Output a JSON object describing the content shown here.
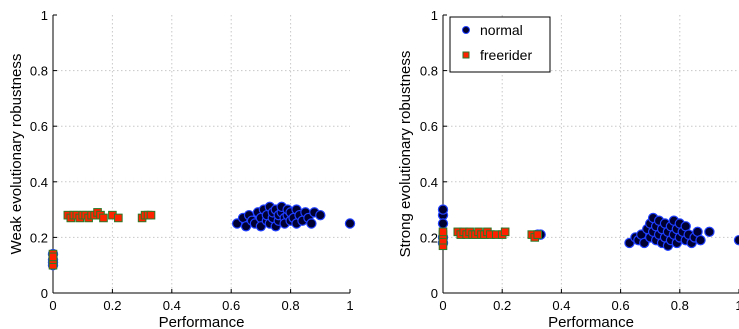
{
  "chart_data": [
    {
      "type": "scatter",
      "xlabel": "Performance",
      "ylabel": "Weak evolutionary robustness",
      "xlim": [
        0,
        1
      ],
      "ylim": [
        0,
        1
      ],
      "x_ticks": [
        "0",
        "0.2",
        "0.4",
        "0.6",
        "0.8",
        "1"
      ],
      "y_ticks": [
        "0",
        "0.2",
        "0.4",
        "0.6",
        "0.8",
        "1"
      ],
      "grid": true,
      "legend": null,
      "series": [
        {
          "name": "normal",
          "marker": "circle",
          "color": "#000033",
          "edge": "#1f3fff",
          "points": [
            [
              0.0,
              0.1
            ],
            [
              0.0,
              0.12
            ],
            [
              0.0,
              0.14
            ],
            [
              0.0,
              0.11
            ],
            [
              0.62,
              0.25
            ],
            [
              0.64,
              0.27
            ],
            [
              0.65,
              0.24
            ],
            [
              0.66,
              0.28
            ],
            [
              0.67,
              0.26
            ],
            [
              0.68,
              0.25
            ],
            [
              0.69,
              0.29
            ],
            [
              0.7,
              0.27
            ],
            [
              0.7,
              0.24
            ],
            [
              0.71,
              0.3
            ],
            [
              0.72,
              0.26
            ],
            [
              0.72,
              0.28
            ],
            [
              0.73,
              0.31
            ],
            [
              0.73,
              0.25
            ],
            [
              0.74,
              0.27
            ],
            [
              0.74,
              0.29
            ],
            [
              0.75,
              0.3
            ],
            [
              0.75,
              0.24
            ],
            [
              0.76,
              0.26
            ],
            [
              0.76,
              0.28
            ],
            [
              0.77,
              0.29
            ],
            [
              0.77,
              0.31
            ],
            [
              0.78,
              0.27
            ],
            [
              0.78,
              0.25
            ],
            [
              0.79,
              0.28
            ],
            [
              0.79,
              0.3
            ],
            [
              0.8,
              0.26
            ],
            [
              0.8,
              0.29
            ],
            [
              0.81,
              0.27
            ],
            [
              0.82,
              0.3
            ],
            [
              0.82,
              0.25
            ],
            [
              0.83,
              0.28
            ],
            [
              0.84,
              0.26
            ],
            [
              0.85,
              0.29
            ],
            [
              0.86,
              0.27
            ],
            [
              0.87,
              0.25
            ],
            [
              0.88,
              0.29
            ],
            [
              0.9,
              0.28
            ],
            [
              1.0,
              0.25
            ]
          ]
        },
        {
          "name": "freerider",
          "marker": "square",
          "color": "#ff2200",
          "edge": "#2a7a2a",
          "points": [
            [
              0.0,
              0.1
            ],
            [
              0.0,
              0.12
            ],
            [
              0.0,
              0.14
            ],
            [
              0.0,
              0.13
            ],
            [
              0.05,
              0.28
            ],
            [
              0.06,
              0.27
            ],
            [
              0.07,
              0.28
            ],
            [
              0.08,
              0.28
            ],
            [
              0.09,
              0.27
            ],
            [
              0.1,
              0.28
            ],
            [
              0.11,
              0.28
            ],
            [
              0.12,
              0.27
            ],
            [
              0.13,
              0.28
            ],
            [
              0.14,
              0.28
            ],
            [
              0.15,
              0.29
            ],
            [
              0.16,
              0.28
            ],
            [
              0.17,
              0.27
            ],
            [
              0.2,
              0.28
            ],
            [
              0.22,
              0.27
            ],
            [
              0.3,
              0.27
            ],
            [
              0.31,
              0.28
            ],
            [
              0.32,
              0.28
            ],
            [
              0.33,
              0.28
            ]
          ]
        }
      ]
    },
    {
      "type": "scatter",
      "xlabel": "Performance",
      "ylabel": "Strong evolutionary robustness",
      "xlim": [
        0,
        1
      ],
      "ylim": [
        0,
        1
      ],
      "x_ticks": [
        "0",
        "0.2",
        "0.4",
        "0.6",
        "0.8",
        "1"
      ],
      "y_ticks": [
        "0",
        "0.2",
        "0.4",
        "0.6",
        "0.8",
        "1"
      ],
      "grid": true,
      "legend": "top-left",
      "series": [
        {
          "name": "normal",
          "marker": "circle",
          "color": "#000033",
          "edge": "#1f3fff",
          "points": [
            [
              0.0,
              0.28
            ],
            [
              0.0,
              0.3
            ],
            [
              0.0,
              0.25
            ],
            [
              0.0,
              0.2
            ],
            [
              0.0,
              0.18
            ],
            [
              0.32,
              0.21
            ],
            [
              0.33,
              0.21
            ],
            [
              0.63,
              0.18
            ],
            [
              0.65,
              0.2
            ],
            [
              0.66,
              0.19
            ],
            [
              0.67,
              0.21
            ],
            [
              0.68,
              0.18
            ],
            [
              0.69,
              0.23
            ],
            [
              0.7,
              0.2
            ],
            [
              0.7,
              0.25
            ],
            [
              0.71,
              0.22
            ],
            [
              0.71,
              0.27
            ],
            [
              0.72,
              0.19
            ],
            [
              0.72,
              0.24
            ],
            [
              0.73,
              0.21
            ],
            [
              0.73,
              0.26
            ],
            [
              0.74,
              0.18
            ],
            [
              0.74,
              0.23
            ],
            [
              0.75,
              0.2
            ],
            [
              0.75,
              0.25
            ],
            [
              0.76,
              0.22
            ],
            [
              0.76,
              0.17
            ],
            [
              0.77,
              0.24
            ],
            [
              0.77,
              0.19
            ],
            [
              0.78,
              0.21
            ],
            [
              0.78,
              0.26
            ],
            [
              0.79,
              0.18
            ],
            [
              0.79,
              0.23
            ],
            [
              0.8,
              0.2
            ],
            [
              0.8,
              0.25
            ],
            [
              0.81,
              0.22
            ],
            [
              0.82,
              0.19
            ],
            [
              0.82,
              0.24
            ],
            [
              0.83,
              0.21
            ],
            [
              0.84,
              0.18
            ],
            [
              0.85,
              0.2
            ],
            [
              0.86,
              0.22
            ],
            [
              0.87,
              0.19
            ],
            [
              0.9,
              0.22
            ],
            [
              1.0,
              0.19
            ]
          ]
        },
        {
          "name": "freerider",
          "marker": "square",
          "color": "#ff2200",
          "edge": "#2a7a2a",
          "points": [
            [
              0.0,
              0.17
            ],
            [
              0.0,
              0.19
            ],
            [
              0.0,
              0.21
            ],
            [
              0.0,
              0.22
            ],
            [
              0.05,
              0.22
            ],
            [
              0.06,
              0.21
            ],
            [
              0.07,
              0.22
            ],
            [
              0.08,
              0.21
            ],
            [
              0.09,
              0.22
            ],
            [
              0.1,
              0.21
            ],
            [
              0.11,
              0.21
            ],
            [
              0.12,
              0.22
            ],
            [
              0.13,
              0.21
            ],
            [
              0.14,
              0.21
            ],
            [
              0.15,
              0.22
            ],
            [
              0.16,
              0.21
            ],
            [
              0.18,
              0.21
            ],
            [
              0.2,
              0.21
            ],
            [
              0.21,
              0.22
            ],
            [
              0.3,
              0.21
            ],
            [
              0.31,
              0.2
            ],
            [
              0.32,
              0.21
            ]
          ]
        }
      ]
    }
  ]
}
